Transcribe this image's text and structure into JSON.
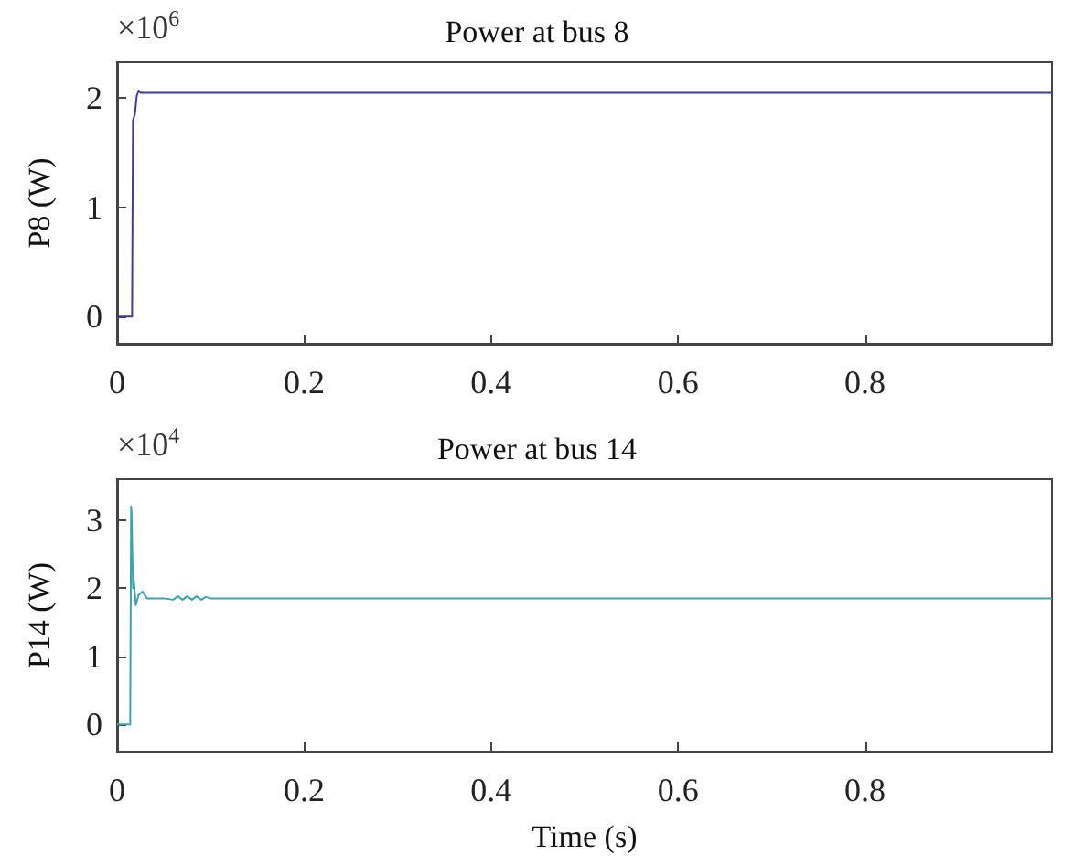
{
  "chart_data": [
    {
      "type": "line",
      "title": "Power at bus 8",
      "ylabel": "P8 (W)",
      "annotations": [
        "×10$^{6}$"
      ],
      "series": [
        {
          "color": "#3d3d9c",
          "x": [
            0,
            0.016,
            0.017,
            0.019,
            0.021,
            0.023,
            0.025,
            0.03,
            0.1,
            0.5,
            1
          ],
          "values": [
            0,
            0,
            1.8,
            1.85,
            2.02,
            2.07,
            2.05,
            2.05,
            2.05,
            2.05,
            2.05
          ]
        }
      ],
      "xlim": [
        0,
        1
      ],
      "xticks": [
        0,
        0.2,
        0.4,
        0.6,
        0.8
      ],
      "ylim": [
        -0.25,
        2.33
      ],
      "yticks": [
        0,
        1,
        2
      ]
    },
    {
      "type": "line",
      "title": "Power at bus 14",
      "xlabel": "Time (s)",
      "ylabel": "P14 (W)",
      "annotations": [
        "×10$^{4}$"
      ],
      "series": [
        {
          "color": "#3aa3b3",
          "x": [
            0,
            0.014,
            0.015,
            0.0155,
            0.017,
            0.018,
            0.02,
            0.023,
            0.027,
            0.032,
            0.04,
            0.05,
            0.06,
            0.065,
            0.07,
            0.075,
            0.08,
            0.085,
            0.09,
            0.095,
            0.1,
            0.11,
            0.2,
            0.5,
            1
          ],
          "values": [
            0,
            0,
            3.2,
            3.1,
            2.0,
            2.1,
            1.75,
            1.9,
            1.95,
            1.85,
            1.85,
            1.85,
            1.83,
            1.88,
            1.83,
            1.88,
            1.83,
            1.88,
            1.83,
            1.87,
            1.85,
            1.85,
            1.85,
            1.85,
            1.85
          ]
        }
      ],
      "xlim": [
        0,
        1
      ],
      "xticks": [
        0,
        0.2,
        0.4,
        0.6,
        0.8
      ],
      "ylim": [
        -0.4,
        3.6
      ],
      "yticks": [
        0,
        1,
        2,
        3
      ]
    }
  ]
}
